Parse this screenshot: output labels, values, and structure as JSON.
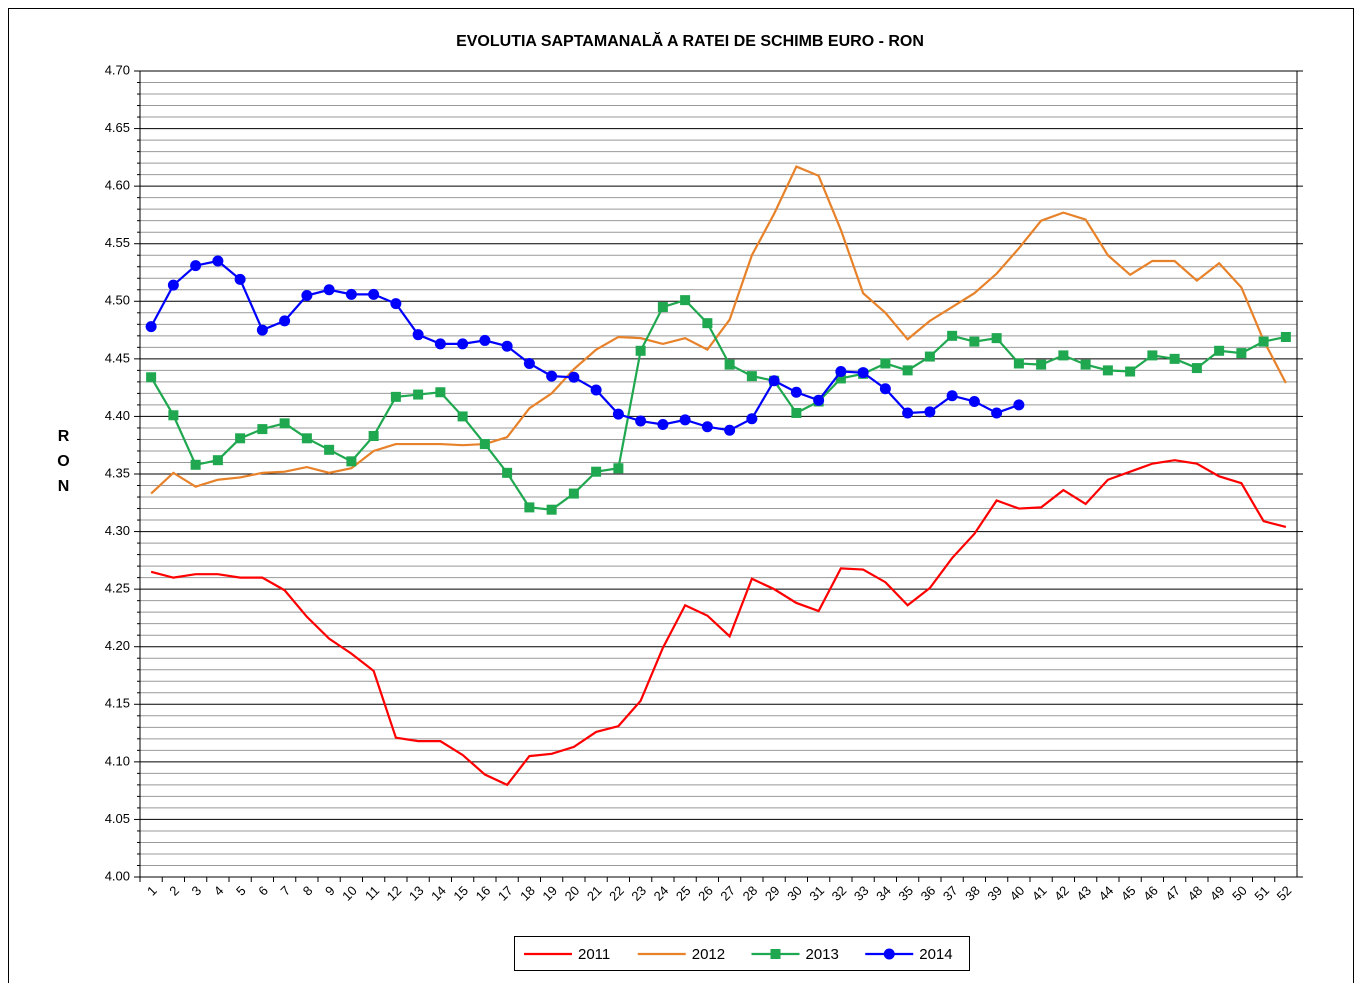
{
  "chart_data": {
    "type": "line",
    "title": "EVOLUTIA SAPTAMANALĂ A RATEI DE SCHIMB EURO - RON",
    "y_label": "RON",
    "categories": [
      1,
      2,
      3,
      4,
      5,
      6,
      7,
      8,
      9,
      10,
      11,
      12,
      13,
      14,
      15,
      16,
      17,
      18,
      19,
      20,
      21,
      22,
      23,
      24,
      25,
      26,
      27,
      28,
      29,
      30,
      31,
      32,
      33,
      34,
      35,
      36,
      37,
      38,
      39,
      40,
      41,
      42,
      43,
      44,
      45,
      46,
      47,
      48,
      49,
      50,
      51,
      52
    ],
    "ylim": [
      4.0,
      4.7
    ],
    "yticks": [
      {
        "value": 4.0,
        "label": "4.00"
      },
      4.05,
      {
        "value": 4.1,
        "label": "4.10"
      },
      4.15,
      {
        "value": 4.2,
        "label": "4.20"
      },
      4.25,
      {
        "value": 4.3,
        "label": "4.30"
      },
      4.35,
      {
        "value": 4.4,
        "label": "4.40"
      },
      4.45,
      {
        "value": 4.5,
        "label": "4.50"
      },
      4.55,
      {
        "value": 4.6,
        "label": "4.60"
      },
      4.65,
      {
        "value": 4.7,
        "label": "4.70"
      }
    ],
    "grid": true,
    "legend": "bottom",
    "series": [
      {
        "name": "2011",
        "color": "#ff0000",
        "marker": "none",
        "values": [
          4.265,
          4.26,
          4.263,
          4.263,
          4.26,
          4.26,
          4.249,
          4.226,
          4.207,
          4.194,
          4.179,
          4.121,
          4.118,
          4.118,
          4.106,
          4.089,
          4.08,
          4.105,
          4.107,
          4.113,
          4.126,
          4.131,
          4.153,
          4.199,
          4.236,
          4.227,
          4.209,
          4.259,
          4.25,
          4.238,
          4.231,
          4.268,
          4.267,
          4.256,
          4.236,
          4.251,
          4.277,
          4.298,
          4.327,
          4.32,
          4.321,
          4.336,
          4.324,
          4.345,
          4.352,
          4.359,
          4.362,
          4.359,
          4.348,
          4.342,
          4.309,
          4.304
        ]
      },
      {
        "name": "2012",
        "color": "#e8822a",
        "marker": "none",
        "values": [
          4.333,
          4.351,
          4.339,
          4.345,
          4.347,
          4.351,
          4.352,
          4.356,
          4.351,
          4.355,
          4.37,
          4.376,
          4.376,
          4.376,
          4.375,
          4.376,
          4.382,
          4.407,
          4.42,
          4.441,
          4.458,
          4.469,
          4.468,
          4.463,
          4.468,
          4.458,
          4.484,
          4.54,
          4.576,
          4.617,
          4.609,
          4.562,
          4.507,
          4.49,
          4.467,
          4.483,
          4.495,
          4.507,
          4.524,
          4.546,
          4.57,
          4.577,
          4.571,
          4.54,
          4.523,
          4.535,
          4.535,
          4.518,
          4.533,
          4.512,
          4.466,
          4.429
        ]
      },
      {
        "name": "2013",
        "color": "#1fa84f",
        "marker": "square",
        "values": [
          4.434,
          4.401,
          4.358,
          4.362,
          4.381,
          4.389,
          4.394,
          4.381,
          4.371,
          4.361,
          4.383,
          4.417,
          4.419,
          4.421,
          4.4,
          4.376,
          4.351,
          4.321,
          4.319,
          4.333,
          4.352,
          4.355,
          4.457,
          4.495,
          4.501,
          4.481,
          4.445,
          4.435,
          4.431,
          4.403,
          4.413,
          4.433,
          4.437,
          4.446,
          4.44,
          4.452,
          4.47,
          4.465,
          4.468,
          4.446,
          4.445,
          4.453,
          4.445,
          4.44,
          4.439,
          4.453,
          4.45,
          4.442,
          4.457,
          4.455,
          4.465,
          4.469
        ]
      },
      {
        "name": "2014",
        "color": "#0000ff",
        "marker": "circle",
        "values": [
          4.478,
          4.514,
          4.531,
          4.535,
          4.519,
          4.475,
          4.483,
          4.505,
          4.51,
          4.506,
          4.506,
          4.498,
          4.471,
          4.463,
          4.463,
          4.466,
          4.461,
          4.446,
          4.435,
          4.434,
          4.423,
          4.402,
          4.396,
          4.393,
          4.397,
          4.391,
          4.388,
          4.398,
          4.431,
          4.421,
          4.414,
          4.439,
          4.438,
          4.424,
          4.403,
          4.404,
          4.418,
          4.413,
          4.403,
          4.41,
          null,
          null,
          null,
          null,
          null,
          null,
          null,
          null,
          null,
          null,
          null,
          null
        ]
      }
    ]
  }
}
